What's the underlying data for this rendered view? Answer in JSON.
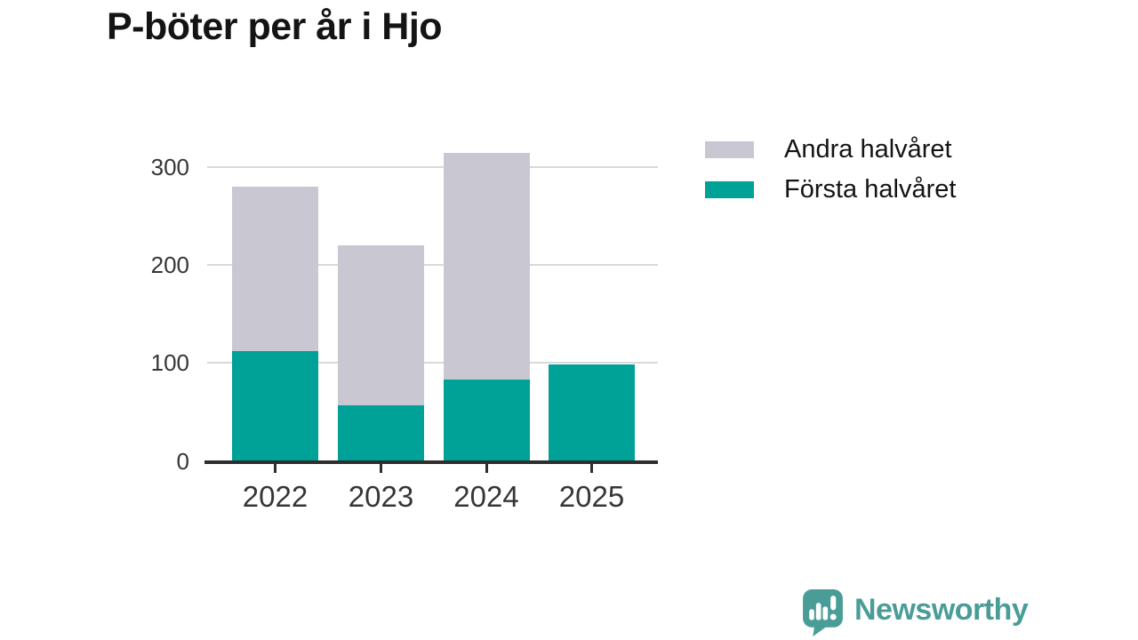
{
  "chart_data": {
    "type": "bar",
    "stacked": true,
    "title": "P-böter per år i Hjo",
    "categories": [
      "2022",
      "2023",
      "2024",
      "2025"
    ],
    "series": [
      {
        "name": "Andra halvåret",
        "color": "#C9C7D2",
        "values": [
          168,
          163,
          231,
          0
        ]
      },
      {
        "name": "Första halvåret",
        "color": "#00A196",
        "values": [
          112,
          57,
          83,
          98
        ]
      }
    ],
    "stack_bottom_series": "Första halvåret",
    "totals": [
      280,
      220,
      314,
      98
    ],
    "y_ticks": [
      0,
      100,
      200,
      300
    ],
    "ylim": [
      0,
      320
    ],
    "xlabel": "",
    "ylabel": "",
    "grid": "horizontal",
    "legend_position": "right-top"
  },
  "colors": {
    "axis": "#2E2E2E",
    "gridline": "#D9D9DD",
    "tick_label": "#363636",
    "title_text": "#141414",
    "brand_teal": "#4A9D97"
  },
  "branding": {
    "logo_text": "Newsworthy",
    "logo_icon": "bar-chart-speech-bubble-icon"
  }
}
